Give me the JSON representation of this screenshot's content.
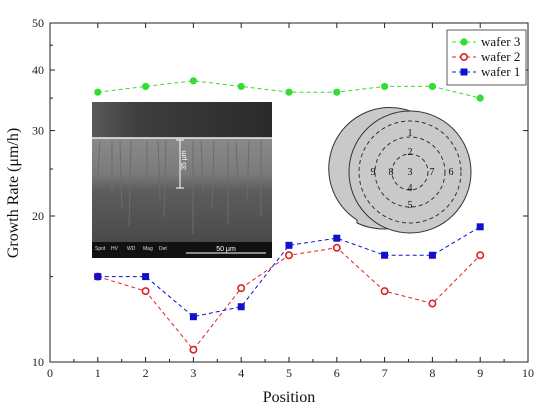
{
  "chart_data": {
    "type": "line",
    "xlabel": "Position",
    "ylabel": "Growth Rate (μm/h)",
    "xlim": [
      0,
      10
    ],
    "ylim": [
      10,
      50
    ],
    "y_scale": "log",
    "x_ticks": [
      "0",
      "1",
      "2",
      "3",
      "4",
      "5",
      "6",
      "7",
      "8",
      "9",
      "10"
    ],
    "y_ticks": [
      {
        "value": 10,
        "label": "10"
      },
      {
        "value": 20,
        "label": "20"
      },
      {
        "value": 30,
        "label": "30"
      },
      {
        "value": 40,
        "label": "40"
      },
      {
        "value": 50,
        "label": "50"
      }
    ],
    "grid": false,
    "legend_position": "top-right",
    "x": [
      1,
      2,
      3,
      4,
      5,
      6,
      7,
      8,
      9
    ],
    "series": [
      {
        "name": "wafer 3",
        "color": "#33dd33",
        "marker": "circle-filled",
        "values": [
          36,
          37,
          38,
          37,
          36,
          36,
          37,
          37,
          35
        ]
      },
      {
        "name": "wafer 2",
        "color": "#dd2222",
        "marker": "circle-open",
        "values": [
          15,
          14,
          10.6,
          14.2,
          16.6,
          17.2,
          14,
          13.2,
          16.6
        ]
      },
      {
        "name": "wafer 1",
        "color": "#1111cc",
        "marker": "square",
        "values": [
          15,
          15,
          12.4,
          13,
          17.4,
          18,
          16.6,
          16.6,
          19
        ]
      }
    ]
  },
  "inset": {
    "sem_thickness_label": "35 μm",
    "sem_scale_label": "50 μm",
    "sem_info": [
      "Spot",
      "HV",
      "WD",
      "Mag",
      "Det"
    ],
    "wafer_positions": [
      "1",
      "2",
      "3",
      "4",
      "5",
      "6",
      "7",
      "8",
      "9"
    ]
  }
}
